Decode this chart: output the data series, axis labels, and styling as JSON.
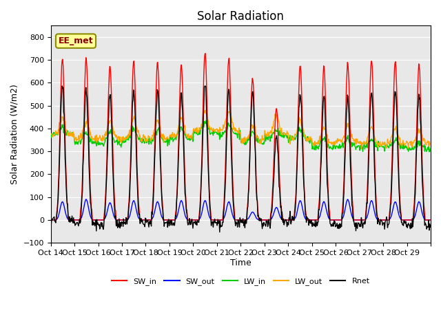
{
  "title": "Solar Radiation",
  "ylabel": "Solar Radiation (W/m2)",
  "xlabel": "Time",
  "ylim": [
    -100,
    850
  ],
  "yticks": [
    -100,
    0,
    100,
    200,
    300,
    400,
    500,
    600,
    700,
    800
  ],
  "xtick_positions": [
    0,
    1,
    2,
    3,
    4,
    5,
    6,
    7,
    8,
    9,
    10,
    11,
    12,
    13,
    14,
    15,
    16
  ],
  "xtick_labels": [
    "Oct 14",
    "Oct 15",
    "Oct 16",
    "Oct 17",
    "Oct 18",
    "Oct 19",
    "Oct 20",
    "Oct 21",
    "Oct 22",
    "Oct 23",
    "Oct 24",
    "Oct 25",
    "Oct 26",
    "Oct 27",
    "Oct 28",
    "Oct 29",
    ""
  ],
  "n_days": 16,
  "points_per_day": 48,
  "SW_in_peak": [
    710,
    705,
    670,
    700,
    690,
    680,
    730,
    710,
    625,
    490,
    680,
    670,
    690,
    700,
    700,
    680
  ],
  "SW_out_peak": [
    80,
    90,
    75,
    85,
    80,
    85,
    85,
    80,
    35,
    55,
    85,
    80,
    90,
    85,
    80,
    80
  ],
  "LW_in_base": [
    375,
    340,
    335,
    350,
    345,
    355,
    380,
    375,
    340,
    365,
    350,
    315,
    325,
    320,
    320,
    310
  ],
  "LW_in_peak_add": [
    30,
    40,
    50,
    50,
    50,
    50,
    50,
    40,
    45,
    30,
    50,
    40,
    30,
    30,
    30,
    30
  ],
  "LW_out_base": [
    375,
    355,
    355,
    360,
    355,
    365,
    390,
    390,
    350,
    375,
    355,
    335,
    345,
    335,
    335,
    335
  ],
  "LW_out_peak_add": [
    70,
    80,
    80,
    85,
    80,
    80,
    90,
    85,
    60,
    80,
    85,
    65,
    70,
    65,
    65,
    60
  ],
  "colors": {
    "SW_in": "#ff0000",
    "SW_out": "#0000ff",
    "LW_in": "#00cc00",
    "LW_out": "#ffa500",
    "Rnet": "#000000",
    "background": "#e8e8e8",
    "annotation_bg": "#ffff99",
    "annotation_border": "#8b8b00",
    "annotation_text": "#8b0000"
  },
  "annotation_text": "EE_met",
  "legend_labels": [
    "SW_in",
    "SW_out",
    "LW_in",
    "LW_out",
    "Rnet"
  ]
}
